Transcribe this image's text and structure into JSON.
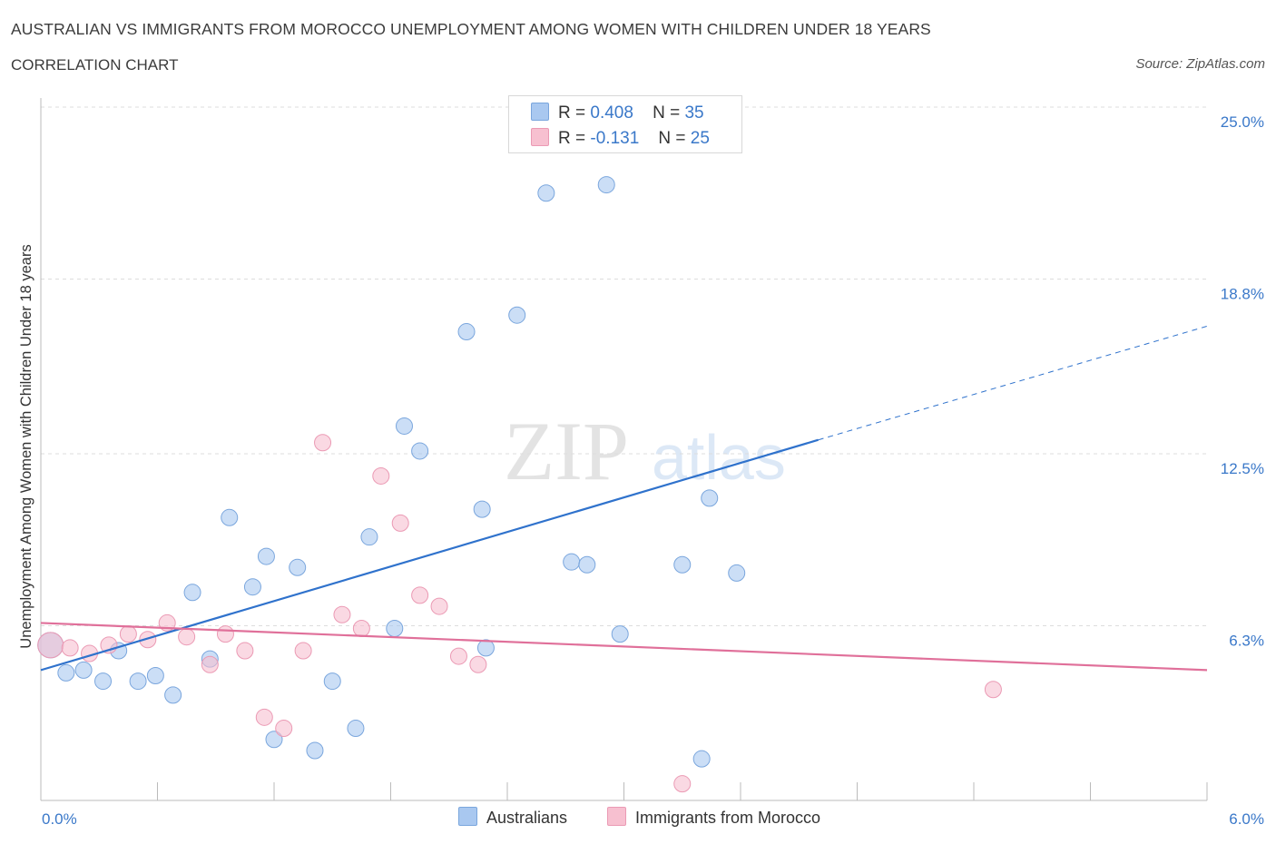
{
  "title": "AUSTRALIAN VS IMMIGRANTS FROM MOROCCO UNEMPLOYMENT AMONG WOMEN WITH CHILDREN UNDER 18 YEARS",
  "subtitle": "CORRELATION CHART",
  "source": "Source: ZipAtlas.com",
  "watermark": {
    "zip": "ZIP",
    "atlas": "atlas"
  },
  "legend": {
    "r_label": "R =",
    "n_label": "N =",
    "rows": [
      {
        "name": "Australians",
        "r": "0.408",
        "n": "35",
        "color": "#a9c8f0"
      },
      {
        "name": "Immigrants from Morocco",
        "r": "-0.131",
        "n": "25",
        "color": "#f7c0d0"
      }
    ]
  },
  "chart_data": {
    "type": "scatter",
    "title": "AUSTRALIAN VS IMMIGRANTS FROM MOROCCO UNEMPLOYMENT AMONG WOMEN WITH CHILDREN UNDER 18 YEARS",
    "xlabel": "",
    "ylabel": "Unemployment Among Women with Children Under 18 years",
    "xlim": [
      0,
      6
    ],
    "ylim": [
      0,
      25
    ],
    "x_tick_labels": [
      "0.0%",
      "6.0%"
    ],
    "y_ticks": [
      6.3,
      12.5,
      18.8,
      25.0
    ],
    "y_tick_labels": [
      "6.3%",
      "12.5%",
      "18.8%",
      "25.0%"
    ],
    "grid": true,
    "series": [
      {
        "name": "Australians",
        "color": "#a9c8f0",
        "stroke": "#7aa6dd",
        "trend_color": "#2f72cc",
        "trend": {
          "x0": 0.0,
          "y0": 4.7,
          "x1": 4.0,
          "y1": 13.0,
          "dash_to_x": 6.0,
          "dash_to_y": 17.1
        },
        "points": [
          [
            0.05,
            5.6,
            14
          ],
          [
            0.13,
            4.6,
            9
          ],
          [
            0.22,
            4.7,
            9
          ],
          [
            0.32,
            4.3,
            9
          ],
          [
            0.4,
            5.4,
            9
          ],
          [
            0.5,
            4.3,
            9
          ],
          [
            0.59,
            4.5,
            9
          ],
          [
            0.68,
            3.8,
            9
          ],
          [
            0.78,
            7.5,
            9
          ],
          [
            0.87,
            5.1,
            9
          ],
          [
            0.97,
            10.2,
            9
          ],
          [
            1.09,
            7.7,
            9
          ],
          [
            1.16,
            8.8,
            9
          ],
          [
            1.2,
            2.2,
            9
          ],
          [
            1.32,
            8.4,
            9
          ],
          [
            1.41,
            1.8,
            9
          ],
          [
            1.5,
            4.3,
            9
          ],
          [
            1.62,
            2.6,
            9
          ],
          [
            1.69,
            9.5,
            9
          ],
          [
            1.82,
            6.2,
            9
          ],
          [
            1.87,
            13.5,
            9
          ],
          [
            1.95,
            12.6,
            9
          ],
          [
            2.19,
            16.9,
            9
          ],
          [
            2.27,
            10.5,
            9
          ],
          [
            2.29,
            5.5,
            9
          ],
          [
            2.45,
            17.5,
            9
          ],
          [
            2.6,
            21.9,
            9
          ],
          [
            2.73,
            8.6,
            9
          ],
          [
            2.81,
            8.5,
            9
          ],
          [
            2.91,
            22.2,
            9
          ],
          [
            2.98,
            6.0,
            9
          ],
          [
            3.3,
            8.5,
            9
          ],
          [
            3.4,
            1.5,
            9
          ],
          [
            3.44,
            10.9,
            9
          ],
          [
            3.58,
            8.2,
            9
          ]
        ]
      },
      {
        "name": "Immigrants from Morocco",
        "color": "#f7c0d0",
        "stroke": "#eb9ab4",
        "trend_color": "#e0709a",
        "trend": {
          "x0": 0.0,
          "y0": 6.4,
          "x1": 6.0,
          "y1": 4.7
        },
        "points": [
          [
            0.05,
            5.6,
            14
          ],
          [
            0.15,
            5.5,
            9
          ],
          [
            0.25,
            5.3,
            9
          ],
          [
            0.35,
            5.6,
            9
          ],
          [
            0.45,
            6.0,
            9
          ],
          [
            0.55,
            5.8,
            9
          ],
          [
            0.65,
            6.4,
            9
          ],
          [
            0.75,
            5.9,
            9
          ],
          [
            0.87,
            4.9,
            9
          ],
          [
            0.95,
            6.0,
            9
          ],
          [
            1.05,
            5.4,
            9
          ],
          [
            1.15,
            3.0,
            9
          ],
          [
            1.25,
            2.6,
            9
          ],
          [
            1.35,
            5.4,
            9
          ],
          [
            1.45,
            12.9,
            9
          ],
          [
            1.55,
            6.7,
            9
          ],
          [
            1.65,
            6.2,
            9
          ],
          [
            1.75,
            11.7,
            9
          ],
          [
            1.85,
            10.0,
            9
          ],
          [
            1.95,
            7.4,
            9
          ],
          [
            2.05,
            7.0,
            9
          ],
          [
            2.15,
            5.2,
            9
          ],
          [
            2.25,
            4.9,
            9
          ],
          [
            3.3,
            0.6,
            9
          ],
          [
            4.9,
            4.0,
            9
          ]
        ]
      }
    ]
  }
}
